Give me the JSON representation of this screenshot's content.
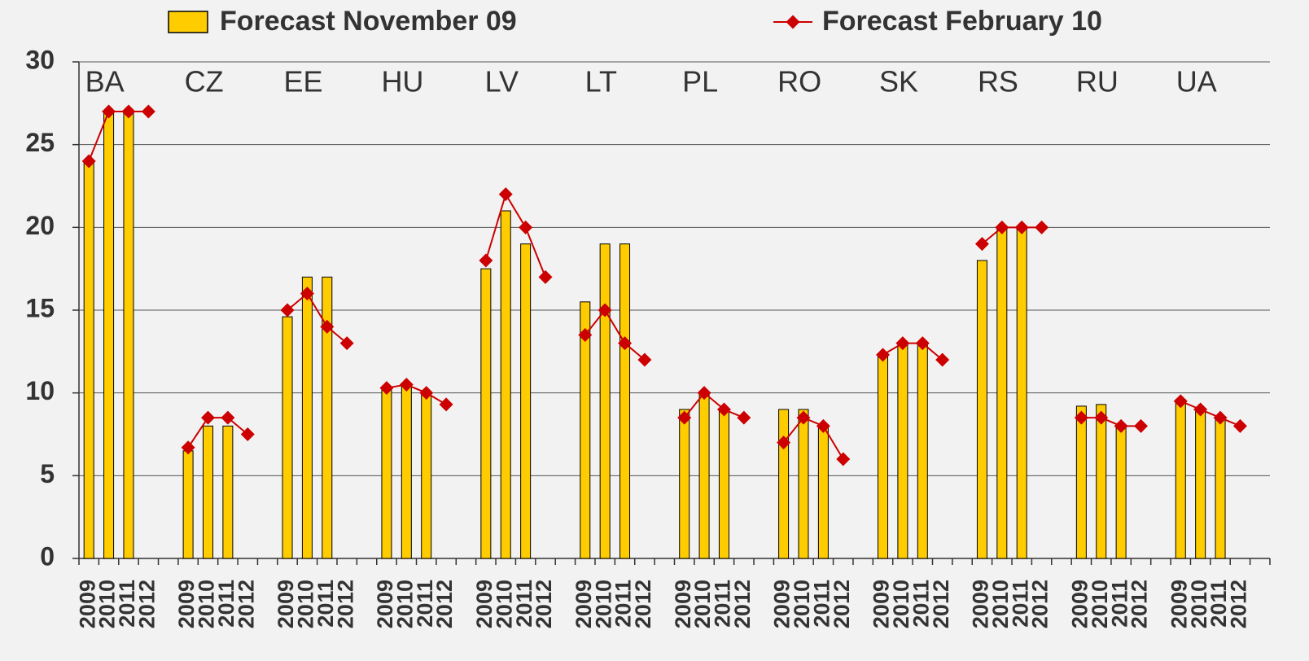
{
  "chart_data": {
    "type": "bar-line",
    "groups": [
      "BA",
      "CZ",
      "EE",
      "HU",
      "LV",
      "LT",
      "PL",
      "RO",
      "SK",
      "RS",
      "RU",
      "UA"
    ],
    "categories": [
      "2009",
      "2010",
      "2011",
      "2012",
      "2009",
      "2010",
      "2011",
      "2012",
      "2009",
      "2010",
      "2011",
      "2012",
      "2009",
      "2010",
      "2011",
      "2012",
      "2009",
      "2010",
      "2011",
      "2012",
      "2009",
      "2010",
      "2011",
      "2012",
      "2009",
      "2010",
      "2011",
      "2012",
      "2009",
      "2010",
      "2011",
      "2012",
      "2009",
      "2010",
      "2011",
      "2012",
      "2009",
      "2010",
      "2011",
      "2012",
      "2009",
      "2010",
      "2011",
      "2012",
      "2009",
      "2010",
      "2011",
      "2012"
    ],
    "series": [
      {
        "name": "Forecast November 09",
        "color": "#ffcc00",
        "kind": "bar",
        "values": [
          24,
          27,
          27,
          null,
          6.5,
          8,
          8,
          null,
          14.6,
          17,
          17,
          null,
          10.3,
          10.4,
          10,
          null,
          17.5,
          21,
          19,
          null,
          15.5,
          19,
          19,
          null,
          9,
          10,
          9,
          null,
          9,
          9,
          8,
          null,
          12.3,
          13,
          13,
          null,
          18,
          20,
          20,
          null,
          9.2,
          9.3,
          8,
          null,
          9.6,
          9,
          8.5,
          null
        ]
      },
      {
        "name": "Forecast February 10",
        "color": "#cc0000",
        "kind": "line",
        "values": [
          24,
          27,
          27,
          27,
          6.7,
          8.5,
          8.5,
          7.5,
          15,
          16,
          14,
          13,
          10.3,
          10.5,
          10,
          9.3,
          18,
          22,
          20,
          17,
          13.5,
          15,
          13,
          12,
          8.5,
          10,
          9,
          8.5,
          7,
          8.5,
          8,
          6,
          12.3,
          13,
          13,
          12,
          19,
          20,
          20,
          20,
          8.5,
          8.5,
          8,
          8,
          9.5,
          9,
          8.5,
          8
        ]
      }
    ],
    "ylim": [
      0,
      30
    ],
    "yticks": [
      0,
      5,
      10,
      15,
      20,
      25,
      30
    ],
    "grid": true
  }
}
